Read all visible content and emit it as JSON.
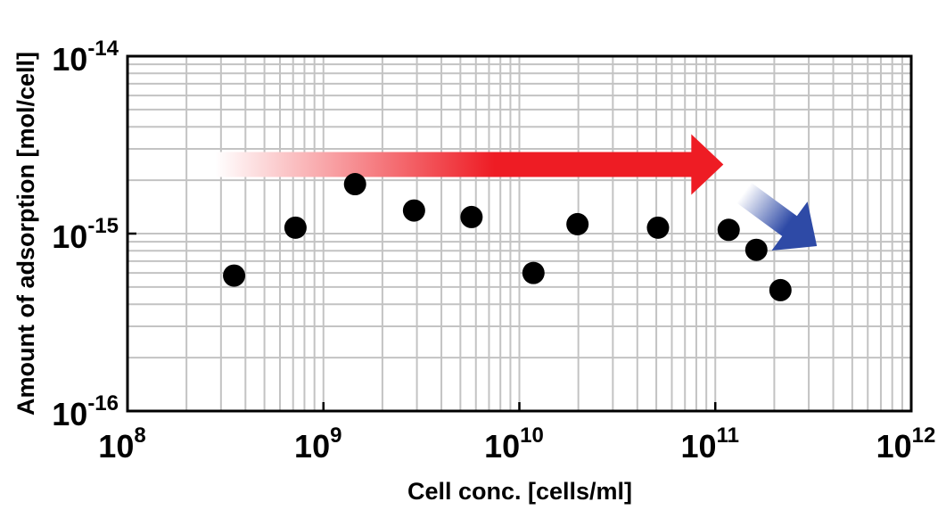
{
  "chart_data": {
    "type": "scatter",
    "xlabel": "Cell conc. [cells/ml]",
    "ylabel": "Amount of adsorption [mol/cell]",
    "xscale": "log",
    "yscale": "log",
    "xlim": [
      100000000.0,
      1000000000000.0
    ],
    "ylim": [
      1e-16,
      1e-14
    ],
    "grid": true,
    "x_ticks": [
      {
        "base": "10",
        "exp": "8"
      },
      {
        "base": "10",
        "exp": "9"
      },
      {
        "base": "10",
        "exp": "10"
      },
      {
        "base": "10",
        "exp": "11"
      },
      {
        "base": "10",
        "exp": "12"
      }
    ],
    "y_ticks": [
      {
        "base": "10",
        "exp": "-16"
      },
      {
        "base": "10",
        "exp": "-15"
      },
      {
        "base": "10",
        "exp": "-14"
      }
    ],
    "points": [
      {
        "x": 350000000.0,
        "y": 5.8e-16
      },
      {
        "x": 720000000.0,
        "y": 1.08e-15
      },
      {
        "x": 1450000000.0,
        "y": 1.9e-15
      },
      {
        "x": 2900000000.0,
        "y": 1.35e-15
      },
      {
        "x": 5700000000.0,
        "y": 1.24e-15
      },
      {
        "x": 11800000000.0,
        "y": 6e-16
      },
      {
        "x": 19800000000.0,
        "y": 1.13e-15
      },
      {
        "x": 51000000000.0,
        "y": 1.08e-15
      },
      {
        "x": 117000000000.0,
        "y": 1.05e-15
      },
      {
        "x": 162000000000.0,
        "y": 8.1e-16
      },
      {
        "x": 215000000000.0,
        "y": 4.8e-16
      }
    ],
    "annotations": [
      {
        "type": "arrow",
        "style": "gradient white-to-red",
        "color": "#ee1c24",
        "from": {
          "x": 280000000.0,
          "y": 2.45e-15
        },
        "to": {
          "x": 110000000000.0,
          "y": 2.45e-15
        }
      },
      {
        "type": "arrow",
        "style": "gradient white-to-blue",
        "color": "#2e4aa6",
        "from": {
          "x": 140000000000.0,
          "y": 1.7e-15
        },
        "to": {
          "x": 330000000000.0,
          "y": 8.5e-16
        }
      }
    ]
  }
}
